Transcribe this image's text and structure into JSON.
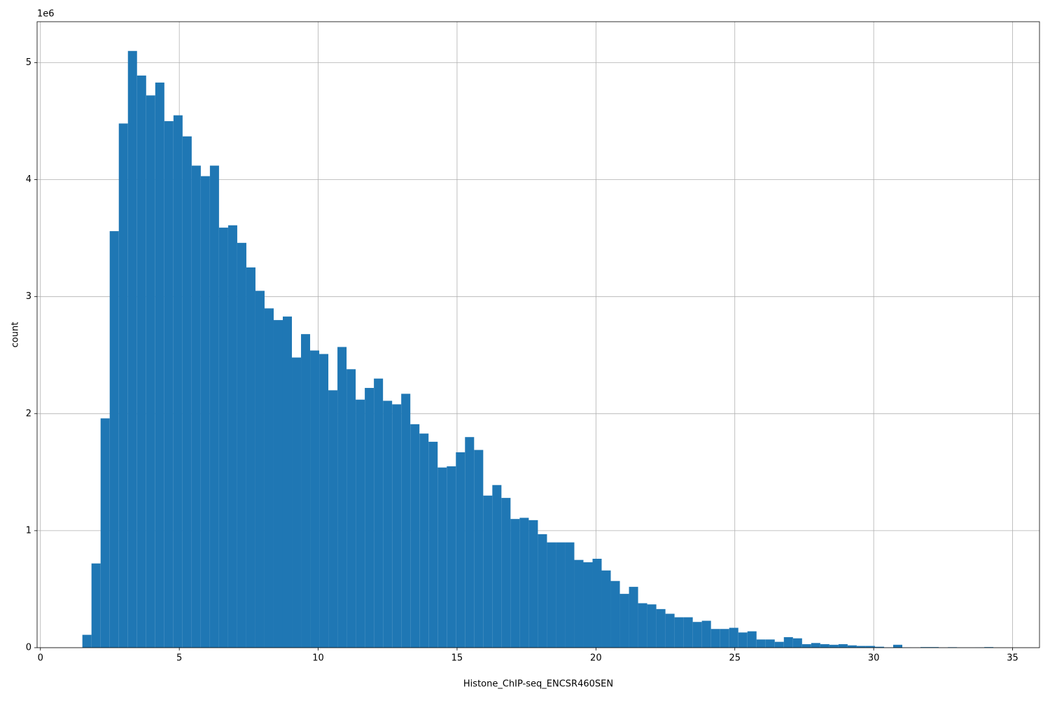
{
  "chart_data": {
    "type": "histogram",
    "xlabel": "Histone_ChIP-seq_ENCSR460SEN",
    "ylabel": "count",
    "y_offset_label": "1e6",
    "color": "#1f77b4",
    "grid": true,
    "bins": [
      1.51,
      1.838,
      2.166,
      2.494,
      2.822,
      3.15,
      3.478,
      3.806,
      4.134,
      4.462,
      4.79,
      5.118,
      5.446,
      5.774,
      6.102,
      6.43,
      6.758,
      7.086,
      7.414,
      7.742,
      8.07,
      8.398,
      8.726,
      9.054,
      9.382,
      9.71,
      10.038,
      10.366,
      10.694,
      11.022,
      11.35,
      11.678,
      12.006,
      12.334,
      12.662,
      12.99,
      13.318,
      13.646,
      13.974,
      14.302,
      14.63,
      14.958,
      15.286,
      15.614,
      15.942,
      16.27,
      16.598,
      16.926,
      17.254,
      17.582,
      17.91,
      18.238,
      18.566,
      18.894,
      19.222,
      19.55,
      19.878,
      20.206,
      20.534,
      20.862,
      21.19,
      21.518,
      21.846,
      22.174,
      22.502,
      22.83,
      23.158,
      23.486,
      23.814,
      24.142,
      24.47,
      24.798,
      25.126,
      25.454,
      25.782,
      26.11,
      26.438,
      26.766,
      27.094,
      27.422,
      27.75,
      28.078,
      28.406,
      28.734,
      29.062,
      29.39,
      29.718,
      30.046,
      30.374,
      30.702,
      31.03,
      31.358,
      31.686,
      32.014,
      32.342,
      32.67,
      32.998,
      33.326,
      33.654,
      33.982,
      34.31
    ],
    "counts": [
      110000,
      720000,
      1960000,
      3560000,
      4480000,
      5100000,
      4890000,
      4720000,
      4830000,
      4500000,
      4550000,
      4370000,
      4120000,
      4030000,
      4120000,
      3590000,
      3610000,
      3460000,
      3250000,
      3050000,
      2900000,
      2800000,
      2830000,
      2480000,
      2680000,
      2540000,
      2510000,
      2200000,
      2570000,
      2380000,
      2120000,
      2220000,
      2300000,
      2110000,
      2080000,
      2170000,
      1910000,
      1830000,
      1760000,
      1540000,
      1550000,
      1670000,
      1800000,
      1690000,
      1300000,
      1390000,
      1280000,
      1100000,
      1110000,
      1090000,
      970000,
      900000,
      900000,
      900000,
      750000,
      730000,
      760000,
      660000,
      570000,
      460000,
      520000,
      380000,
      370000,
      330000,
      290000,
      260000,
      260000,
      220000,
      230000,
      160000,
      160000,
      170000,
      130000,
      140000,
      70000,
      70000,
      50000,
      90000,
      80000,
      30000,
      40000,
      30000,
      25000,
      30000,
      20000,
      15000,
      15000,
      8000,
      3000,
      25000,
      2000,
      1000,
      5000,
      5000,
      1000,
      4000,
      1000,
      1000,
      2000,
      5000
    ],
    "xlim": [
      -0.12,
      35.97
    ],
    "xticks": [
      0,
      5,
      10,
      15,
      20,
      25,
      30,
      35
    ],
    "ylim": [
      0,
      5350000
    ],
    "yticks": [
      {
        "value": 0,
        "label": "0"
      },
      {
        "value": 1000000,
        "label": "1"
      },
      {
        "value": 2000000,
        "label": "2"
      },
      {
        "value": 3000000,
        "label": "3"
      },
      {
        "value": 4000000,
        "label": "4"
      },
      {
        "value": 5000000,
        "label": "5"
      }
    ]
  }
}
